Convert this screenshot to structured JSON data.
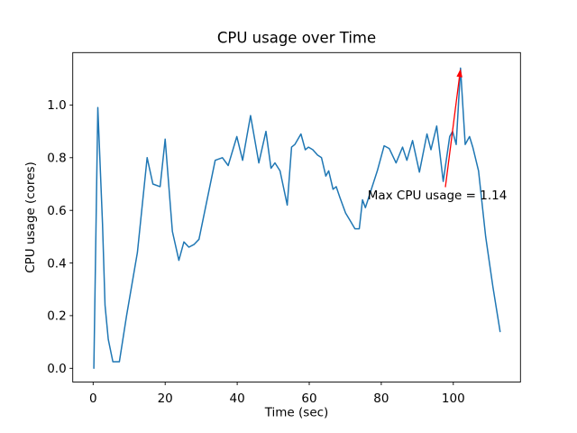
{
  "chart_data": {
    "type": "line",
    "title": "CPU usage over Time",
    "xlabel": "Time (sec)",
    "ylabel": "CPU usage (cores)",
    "xlim": [
      -5.65,
      118.65
    ],
    "ylim": [
      -0.052,
      1.199
    ],
    "xticks": [
      0,
      20,
      40,
      60,
      80,
      100
    ],
    "xtick_labels": [
      "0",
      "20",
      "40",
      "60",
      "80",
      "100"
    ],
    "yticks": [
      0.0,
      0.2,
      0.4,
      0.6,
      0.8,
      1.0
    ],
    "ytick_labels": [
      "0.0",
      "0.2",
      "0.4",
      "0.6",
      "0.8",
      "1.0"
    ],
    "grid": false,
    "legend": false,
    "series": [
      {
        "name": "CPU usage",
        "color": "#1f77b4",
        "points": [
          [
            0.2,
            0.0
          ],
          [
            1.3,
            0.99
          ],
          [
            2.6,
            0.55
          ],
          [
            3.3,
            0.24
          ],
          [
            4.2,
            0.11
          ],
          [
            5.5,
            0.025
          ],
          [
            7.3,
            0.025
          ],
          [
            9.3,
            0.2
          ],
          [
            12.3,
            0.44
          ],
          [
            15.0,
            0.8
          ],
          [
            16.6,
            0.7
          ],
          [
            18.6,
            0.69
          ],
          [
            20.0,
            0.87
          ],
          [
            22.0,
            0.52
          ],
          [
            23.8,
            0.41
          ],
          [
            25.2,
            0.48
          ],
          [
            26.6,
            0.46
          ],
          [
            28.0,
            0.47
          ],
          [
            29.4,
            0.49
          ],
          [
            33.9,
            0.79
          ],
          [
            35.9,
            0.8
          ],
          [
            37.5,
            0.77
          ],
          [
            39.9,
            0.88
          ],
          [
            41.5,
            0.79
          ],
          [
            43.7,
            0.96
          ],
          [
            46.0,
            0.78
          ],
          [
            48.0,
            0.9
          ],
          [
            49.4,
            0.76
          ],
          [
            50.5,
            0.78
          ],
          [
            51.9,
            0.75
          ],
          [
            53.9,
            0.62
          ],
          [
            55.1,
            0.84
          ],
          [
            56.0,
            0.85
          ],
          [
            57.7,
            0.89
          ],
          [
            58.9,
            0.83
          ],
          [
            59.8,
            0.84
          ],
          [
            61.0,
            0.83
          ],
          [
            62.3,
            0.81
          ],
          [
            63.4,
            0.8
          ],
          [
            64.6,
            0.73
          ],
          [
            65.4,
            0.75
          ],
          [
            66.6,
            0.68
          ],
          [
            67.5,
            0.69
          ],
          [
            68.5,
            0.65
          ],
          [
            70.1,
            0.59
          ],
          [
            71.4,
            0.56
          ],
          [
            72.7,
            0.53
          ],
          [
            73.9,
            0.53
          ],
          [
            74.8,
            0.64
          ],
          [
            75.6,
            0.61
          ],
          [
            78.9,
            0.75
          ],
          [
            80.8,
            0.845
          ],
          [
            82.2,
            0.835
          ],
          [
            84.1,
            0.78
          ],
          [
            85.9,
            0.84
          ],
          [
            87.1,
            0.79
          ],
          [
            88.7,
            0.865
          ],
          [
            90.6,
            0.745
          ],
          [
            92.7,
            0.89
          ],
          [
            93.8,
            0.83
          ],
          [
            95.4,
            0.92
          ],
          [
            97.2,
            0.71
          ],
          [
            99.0,
            0.88
          ],
          [
            99.8,
            0.9
          ],
          [
            100.8,
            0.85
          ],
          [
            102.0,
            1.14
          ],
          [
            103.3,
            0.85
          ],
          [
            104.5,
            0.88
          ],
          [
            105.4,
            0.84
          ],
          [
            107.0,
            0.75
          ],
          [
            109.0,
            0.5
          ],
          [
            111.0,
            0.31
          ],
          [
            113.0,
            0.14
          ]
        ]
      }
    ],
    "annotation": {
      "text": "Max CPU usage = 1.14",
      "max_value": 1.14,
      "color": "#ff0000",
      "xy": [
        102,
        1.137
      ],
      "arrow_tail": [
        97.8,
        0.688
      ],
      "text_xy": [
        76.2,
        0.641
      ]
    }
  }
}
